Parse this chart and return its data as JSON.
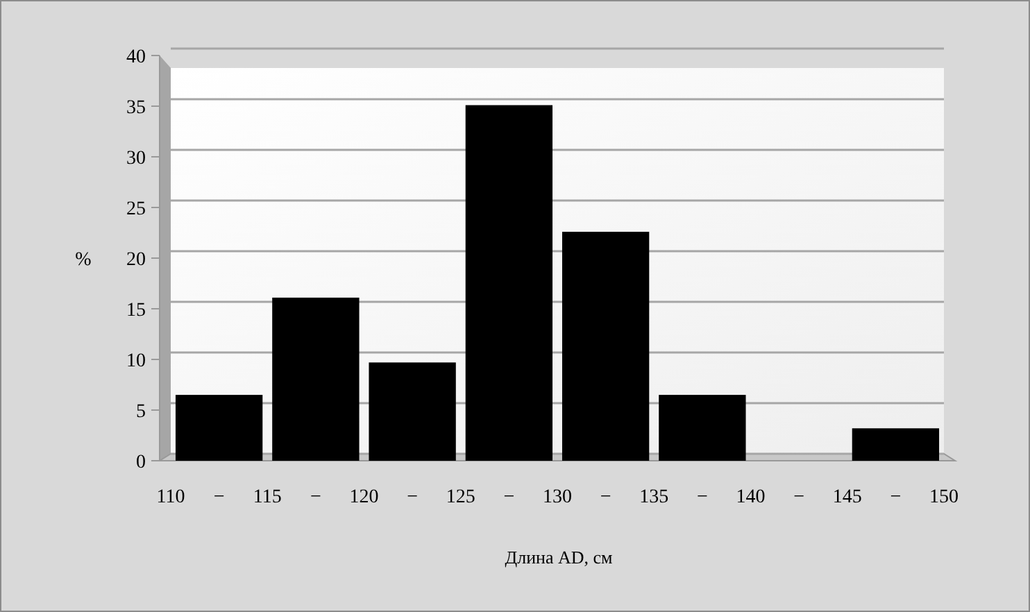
{
  "chart_data": {
    "type": "histogram",
    "xlabel": "Длина AD, см",
    "ylabel": "%",
    "bins": [
      110,
      115,
      120,
      125,
      130,
      135,
      140,
      145,
      150
    ],
    "values": [
      6.5,
      16.1,
      9.7,
      35.1,
      22.6,
      6.5,
      0,
      3.2
    ],
    "color": "#000000",
    "xlim": [
      110,
      150
    ],
    "xticks": [
      110,
      {
        "value": 112.5,
        "label": "−"
      },
      115,
      {
        "value": 117.5,
        "label": "−"
      },
      120,
      {
        "value": 122.5,
        "label": "−"
      },
      125,
      {
        "value": 127.5,
        "label": "−"
      },
      130,
      {
        "value": 132.5,
        "label": "−"
      },
      135,
      {
        "value": 137.5,
        "label": "−"
      },
      140,
      {
        "value": 142.5,
        "label": "−"
      },
      145,
      {
        "value": 147.5,
        "label": "−"
      },
      150
    ],
    "ylim": [
      0,
      40
    ],
    "yticks": [
      0,
      5,
      10,
      15,
      20,
      25,
      30,
      35,
      40
    ],
    "grid": "y"
  }
}
